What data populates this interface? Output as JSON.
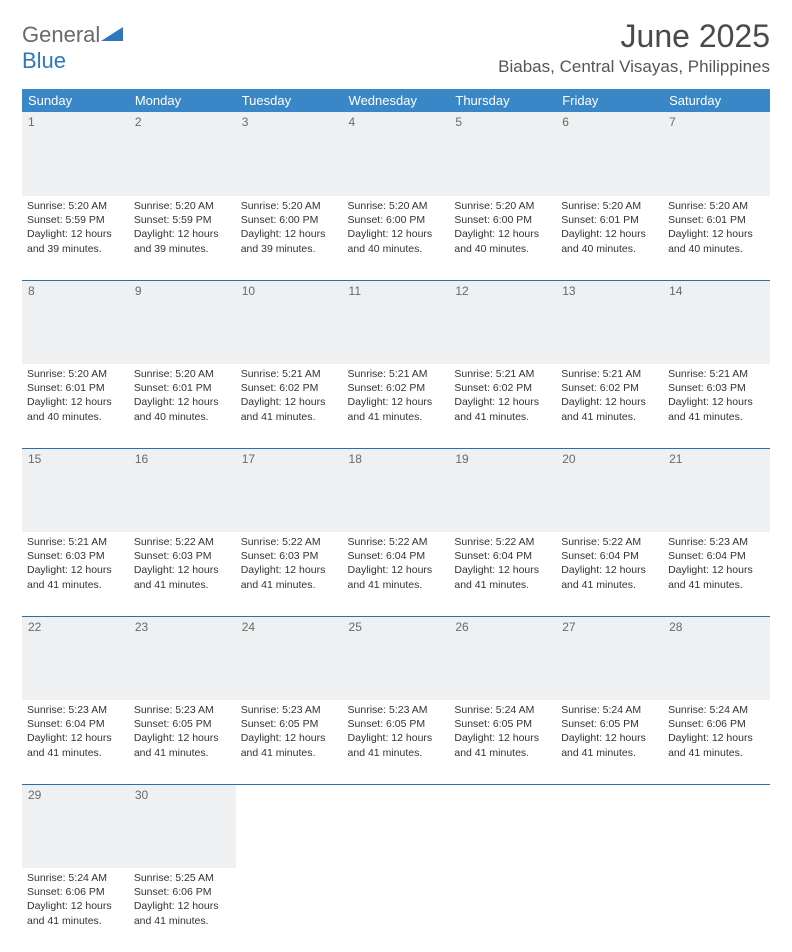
{
  "logo": {
    "word1": "General",
    "word2": "Blue",
    "shape_color": "#2f78bd",
    "word1_color": "#6a6a6a"
  },
  "title": "June 2025",
  "location": "Biabas, Central Visayas, Philippines",
  "colors": {
    "header_bg": "#3a87c8",
    "header_text": "#ffffff",
    "daynum_bg": "#eef0f1",
    "daynum_text": "#6a6a6a",
    "rule": "#2f6fa8",
    "body_text": "#333333"
  },
  "weekdays": [
    "Sunday",
    "Monday",
    "Tuesday",
    "Wednesday",
    "Thursday",
    "Friday",
    "Saturday"
  ],
  "days": {
    "1": {
      "sunrise": "Sunrise: 5:20 AM",
      "sunset": "Sunset: 5:59 PM",
      "daylight": "Daylight: 12 hours and 39 minutes."
    },
    "2": {
      "sunrise": "Sunrise: 5:20 AM",
      "sunset": "Sunset: 5:59 PM",
      "daylight": "Daylight: 12 hours and 39 minutes."
    },
    "3": {
      "sunrise": "Sunrise: 5:20 AM",
      "sunset": "Sunset: 6:00 PM",
      "daylight": "Daylight: 12 hours and 39 minutes."
    },
    "4": {
      "sunrise": "Sunrise: 5:20 AM",
      "sunset": "Sunset: 6:00 PM",
      "daylight": "Daylight: 12 hours and 40 minutes."
    },
    "5": {
      "sunrise": "Sunrise: 5:20 AM",
      "sunset": "Sunset: 6:00 PM",
      "daylight": "Daylight: 12 hours and 40 minutes."
    },
    "6": {
      "sunrise": "Sunrise: 5:20 AM",
      "sunset": "Sunset: 6:01 PM",
      "daylight": "Daylight: 12 hours and 40 minutes."
    },
    "7": {
      "sunrise": "Sunrise: 5:20 AM",
      "sunset": "Sunset: 6:01 PM",
      "daylight": "Daylight: 12 hours and 40 minutes."
    },
    "8": {
      "sunrise": "Sunrise: 5:20 AM",
      "sunset": "Sunset: 6:01 PM",
      "daylight": "Daylight: 12 hours and 40 minutes."
    },
    "9": {
      "sunrise": "Sunrise: 5:20 AM",
      "sunset": "Sunset: 6:01 PM",
      "daylight": "Daylight: 12 hours and 40 minutes."
    },
    "10": {
      "sunrise": "Sunrise: 5:21 AM",
      "sunset": "Sunset: 6:02 PM",
      "daylight": "Daylight: 12 hours and 41 minutes."
    },
    "11": {
      "sunrise": "Sunrise: 5:21 AM",
      "sunset": "Sunset: 6:02 PM",
      "daylight": "Daylight: 12 hours and 41 minutes."
    },
    "12": {
      "sunrise": "Sunrise: 5:21 AM",
      "sunset": "Sunset: 6:02 PM",
      "daylight": "Daylight: 12 hours and 41 minutes."
    },
    "13": {
      "sunrise": "Sunrise: 5:21 AM",
      "sunset": "Sunset: 6:02 PM",
      "daylight": "Daylight: 12 hours and 41 minutes."
    },
    "14": {
      "sunrise": "Sunrise: 5:21 AM",
      "sunset": "Sunset: 6:03 PM",
      "daylight": "Daylight: 12 hours and 41 minutes."
    },
    "15": {
      "sunrise": "Sunrise: 5:21 AM",
      "sunset": "Sunset: 6:03 PM",
      "daylight": "Daylight: 12 hours and 41 minutes."
    },
    "16": {
      "sunrise": "Sunrise: 5:22 AM",
      "sunset": "Sunset: 6:03 PM",
      "daylight": "Daylight: 12 hours and 41 minutes."
    },
    "17": {
      "sunrise": "Sunrise: 5:22 AM",
      "sunset": "Sunset: 6:03 PM",
      "daylight": "Daylight: 12 hours and 41 minutes."
    },
    "18": {
      "sunrise": "Sunrise: 5:22 AM",
      "sunset": "Sunset: 6:04 PM",
      "daylight": "Daylight: 12 hours and 41 minutes."
    },
    "19": {
      "sunrise": "Sunrise: 5:22 AM",
      "sunset": "Sunset: 6:04 PM",
      "daylight": "Daylight: 12 hours and 41 minutes."
    },
    "20": {
      "sunrise": "Sunrise: 5:22 AM",
      "sunset": "Sunset: 6:04 PM",
      "daylight": "Daylight: 12 hours and 41 minutes."
    },
    "21": {
      "sunrise": "Sunrise: 5:23 AM",
      "sunset": "Sunset: 6:04 PM",
      "daylight": "Daylight: 12 hours and 41 minutes."
    },
    "22": {
      "sunrise": "Sunrise: 5:23 AM",
      "sunset": "Sunset: 6:04 PM",
      "daylight": "Daylight: 12 hours and 41 minutes."
    },
    "23": {
      "sunrise": "Sunrise: 5:23 AM",
      "sunset": "Sunset: 6:05 PM",
      "daylight": "Daylight: 12 hours and 41 minutes."
    },
    "24": {
      "sunrise": "Sunrise: 5:23 AM",
      "sunset": "Sunset: 6:05 PM",
      "daylight": "Daylight: 12 hours and 41 minutes."
    },
    "25": {
      "sunrise": "Sunrise: 5:23 AM",
      "sunset": "Sunset: 6:05 PM",
      "daylight": "Daylight: 12 hours and 41 minutes."
    },
    "26": {
      "sunrise": "Sunrise: 5:24 AM",
      "sunset": "Sunset: 6:05 PM",
      "daylight": "Daylight: 12 hours and 41 minutes."
    },
    "27": {
      "sunrise": "Sunrise: 5:24 AM",
      "sunset": "Sunset: 6:05 PM",
      "daylight": "Daylight: 12 hours and 41 minutes."
    },
    "28": {
      "sunrise": "Sunrise: 5:24 AM",
      "sunset": "Sunset: 6:06 PM",
      "daylight": "Daylight: 12 hours and 41 minutes."
    },
    "29": {
      "sunrise": "Sunrise: 5:24 AM",
      "sunset": "Sunset: 6:06 PM",
      "daylight": "Daylight: 12 hours and 41 minutes."
    },
    "30": {
      "sunrise": "Sunrise: 5:25 AM",
      "sunset": "Sunset: 6:06 PM",
      "daylight": "Daylight: 12 hours and 41 minutes."
    }
  },
  "layout": {
    "weeks": [
      [
        1,
        2,
        3,
        4,
        5,
        6,
        7
      ],
      [
        8,
        9,
        10,
        11,
        12,
        13,
        14
      ],
      [
        15,
        16,
        17,
        18,
        19,
        20,
        21
      ],
      [
        22,
        23,
        24,
        25,
        26,
        27,
        28
      ],
      [
        29,
        30,
        null,
        null,
        null,
        null,
        null
      ]
    ]
  }
}
